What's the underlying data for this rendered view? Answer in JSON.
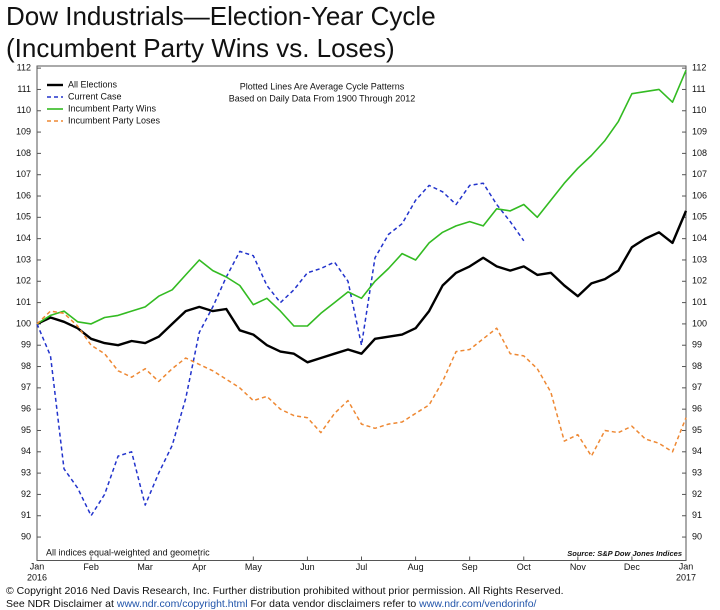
{
  "chart_data": {
    "type": "line",
    "title": [
      "Dow Industrials—Election-Year Cycle",
      "(Incumbent Party Wins vs. Loses)"
    ],
    "annotation": [
      "Plotted Lines Are Average Cycle Patterns",
      "Based on Daily Data From 1900 Through 2012"
    ],
    "note": "All indices equal-weighted and geometric",
    "source": "Source: S&P Dow Jones Indices",
    "footer": [
      "© Copyright 2016 Ned Davis Research, Inc. Further distribution prohibited without prior permission. All Rights Reserved.",
      [
        "See NDR Disclaimer at ",
        "www.ndr.com/copyright.html",
        " For data vendor disclaimers refer to ",
        "www.ndr.com/vendorinfo/"
      ]
    ],
    "x": [
      0,
      0.25,
      0.5,
      0.75,
      1,
      1.25,
      1.5,
      1.75,
      2,
      2.25,
      2.5,
      2.75,
      3,
      3.25,
      3.5,
      3.75,
      4,
      4.25,
      4.5,
      4.75,
      5,
      5.25,
      5.5,
      5.75,
      6,
      6.25,
      6.5,
      6.75,
      7,
      7.25,
      7.5,
      7.75,
      8,
      8.25,
      8.5,
      8.75,
      9,
      9.25,
      9.5,
      9.75,
      10,
      10.25,
      10.5,
      10.75,
      11,
      11.25,
      11.5,
      11.75,
      12
    ],
    "xlim": [
      0,
      12
    ],
    "xticks": [
      {
        "value": 0,
        "label": "Jan 2016"
      },
      {
        "value": 1,
        "label": "Feb"
      },
      {
        "value": 2,
        "label": "Mar"
      },
      {
        "value": 3,
        "label": "Apr"
      },
      {
        "value": 4,
        "label": "May"
      },
      {
        "value": 5,
        "label": "Jun"
      },
      {
        "value": 6,
        "label": "Jul"
      },
      {
        "value": 7,
        "label": "Aug"
      },
      {
        "value": 8,
        "label": "Sep"
      },
      {
        "value": 9,
        "label": "Oct"
      },
      {
        "value": 10,
        "label": "Nov"
      },
      {
        "value": 11,
        "label": "Dec"
      },
      {
        "value": 12,
        "label": "Jan 2017"
      }
    ],
    "ylim": [
      88.9,
      112.1
    ],
    "yticks": [
      90,
      91,
      92,
      93,
      94,
      95,
      96,
      97,
      98,
      99,
      100,
      101,
      102,
      103,
      104,
      105,
      106,
      107,
      108,
      109,
      110,
      111,
      112
    ],
    "legend": "upper left",
    "series": [
      {
        "name": "All Elections",
        "color": "#000000",
        "dash": "none",
        "width": 2.4,
        "values": [
          100,
          100.3,
          100.1,
          99.8,
          99.3,
          99.1,
          99.0,
          99.2,
          99.1,
          99.4,
          100.0,
          100.6,
          100.8,
          100.6,
          100.7,
          99.7,
          99.5,
          99.0,
          98.7,
          98.6,
          98.2,
          98.4,
          98.6,
          98.8,
          98.6,
          99.3,
          99.4,
          99.5,
          99.8,
          100.6,
          101.8,
          102.4,
          102.7,
          103.1,
          102.7,
          102.5,
          102.7,
          102.3,
          102.4,
          101.8,
          101.3,
          101.9,
          102.1,
          102.5,
          103.6,
          104.0,
          104.3,
          103.8,
          105.3
        ]
      },
      {
        "name": "Current Case",
        "color": "#2233cc",
        "dash": "4,3",
        "width": 1.5,
        "values": [
          100,
          98.5,
          93.2,
          92.3,
          91.0,
          92.0,
          93.8,
          94.0,
          91.5,
          93.0,
          94.3,
          96.5,
          99.6,
          100.8,
          102.2,
          103.4,
          103.2,
          101.8,
          101.0,
          101.6,
          102.4,
          102.6,
          102.9,
          102.0,
          99.0,
          103.1,
          104.2,
          104.7,
          105.8,
          106.5,
          106.2,
          105.6,
          106.5,
          106.6,
          105.6,
          104.8,
          103.9,
          null,
          null,
          null,
          null,
          null,
          null,
          null,
          null,
          null,
          null,
          null,
          null
        ]
      },
      {
        "name": "Incumbent Party Wins",
        "color": "#33bb22",
        "dash": "none",
        "width": 1.6,
        "values": [
          100,
          100.4,
          100.6,
          100.1,
          100.0,
          100.3,
          100.4,
          100.6,
          100.8,
          101.3,
          101.6,
          102.3,
          103.0,
          102.5,
          102.2,
          101.8,
          100.9,
          101.2,
          100.6,
          99.9,
          99.9,
          100.5,
          101.0,
          101.5,
          101.2,
          102.0,
          102.6,
          103.3,
          103.0,
          103.8,
          104.3,
          104.6,
          104.8,
          104.6,
          105.4,
          105.3,
          105.6,
          105.0,
          105.8,
          106.6,
          107.3,
          107.9,
          108.6,
          109.5,
          110.8,
          110.9,
          111.0,
          110.4,
          111.9
        ]
      },
      {
        "name": "Incumbent Party Loses",
        "color": "#ee8833",
        "dash": "4,3",
        "width": 1.5,
        "values": [
          100,
          100.6,
          100.5,
          99.9,
          99.0,
          98.6,
          97.8,
          97.5,
          97.9,
          97.3,
          97.9,
          98.4,
          98.1,
          97.8,
          97.4,
          97.0,
          96.4,
          96.6,
          96.0,
          95.7,
          95.6,
          94.9,
          95.8,
          96.4,
          95.3,
          95.1,
          95.3,
          95.4,
          95.8,
          96.2,
          97.3,
          98.7,
          98.8,
          99.3,
          99.8,
          98.6,
          98.5,
          97.9,
          96.8,
          94.5,
          94.8,
          93.8,
          95.0,
          94.9,
          95.2,
          94.6,
          94.4,
          94.0,
          95.6
        ]
      }
    ]
  }
}
